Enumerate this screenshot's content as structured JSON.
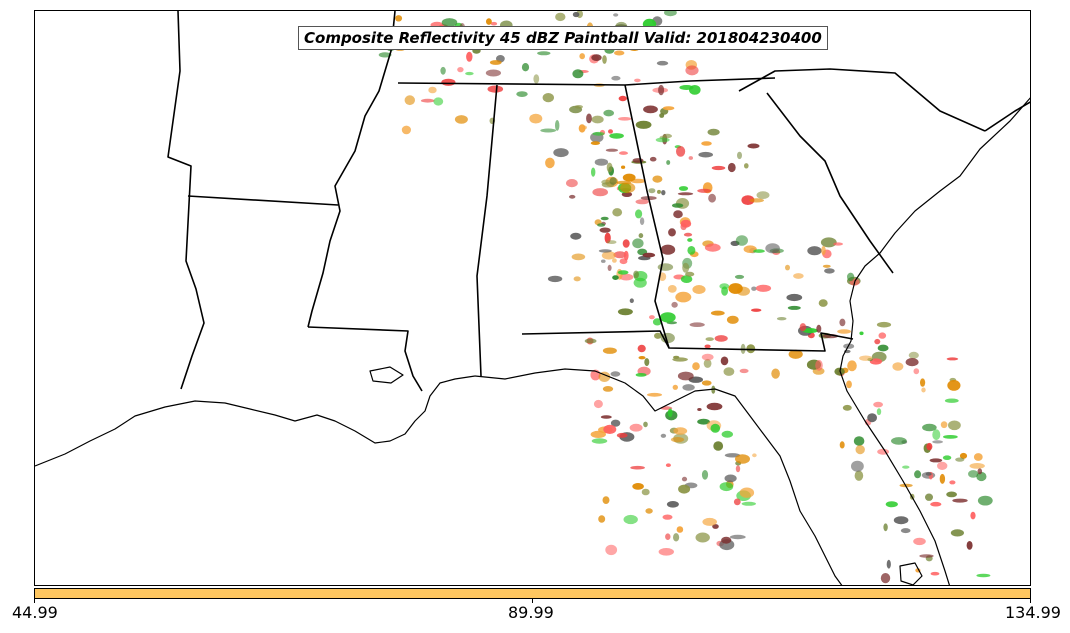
{
  "title": "Composite Reflectivity 45 dBZ Paintball Valid: 201804230400",
  "colorbar": {
    "color": "#fec660",
    "ticks": [
      "44.99",
      "89.99",
      "134.99"
    ]
  },
  "palette": [
    "#ee3b3b",
    "#f4a43a",
    "#8b9444",
    "#2e8b2e",
    "#7c2f2f",
    "#2dcc2d",
    "#5e5e5e",
    "#e08a00",
    "#6b7f2f",
    "#ff6060"
  ]
}
